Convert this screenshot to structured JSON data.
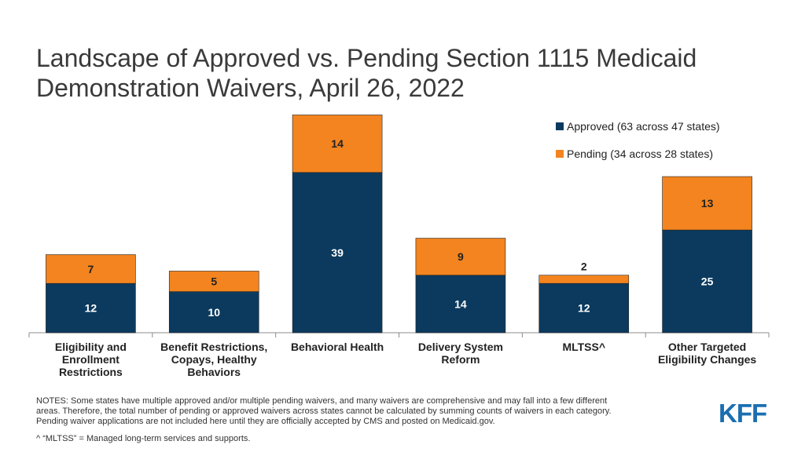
{
  "title_lines": [
    "Landscape of Approved vs. Pending Section 1115 Medicaid",
    "Demonstration Waivers, April 26, 2022"
  ],
  "legend": {
    "approved": "Approved (63 across 47 states)",
    "pending": "Pending (34 across 28 states)"
  },
  "colors": {
    "approved": "#0b3a5e",
    "pending": "#f3841f",
    "axis": "#8c8c8c"
  },
  "chart_data": {
    "type": "bar",
    "stacked": true,
    "categories": [
      [
        "Eligibility and",
        "Enrollment",
        "Restrictions"
      ],
      [
        "Benefit Restrictions,",
        "Copays, Healthy",
        "Behaviors"
      ],
      [
        "Behavioral Health"
      ],
      [
        "Delivery System",
        "Reform"
      ],
      [
        "MLTSS^"
      ],
      [
        "Other Targeted",
        "Eligibility Changes"
      ]
    ],
    "series": [
      {
        "name": "Approved (63 across 47 states)",
        "values": [
          12,
          10,
          39,
          14,
          12,
          25
        ]
      },
      {
        "name": "Pending (34 across 28 states)",
        "values": [
          7,
          5,
          14,
          9,
          2,
          13
        ]
      }
    ],
    "ylim": [
      0,
      55
    ],
    "legend_position": "top-right"
  },
  "notes": [
    "NOTES: Some states have multiple approved and/or multiple pending waivers, and many waivers are comprehensive and may fall into a few different",
    "areas. Therefore, the total number of pending or approved waivers across states cannot be calculated by summing counts of waivers in each category.",
    "Pending waiver applications are not included here until they are officially accepted by CMS and posted on Medicaid.gov."
  ],
  "footnote": "^ “MLTSS” = Managed long-term services and supports.",
  "logo_text": "KFF"
}
